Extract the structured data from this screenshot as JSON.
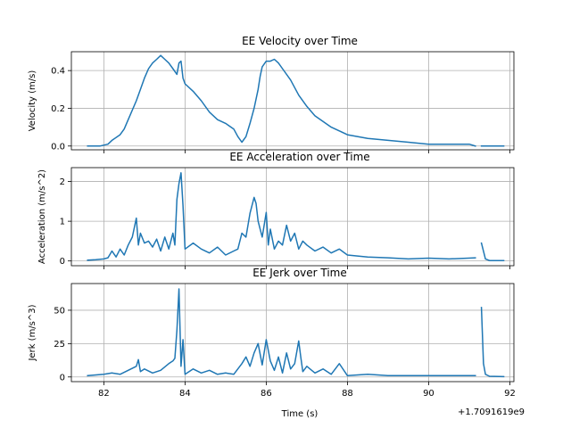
{
  "chart_data": [
    {
      "type": "line",
      "title": "EE Velocity over Time",
      "xlabel": "",
      "ylabel": "Velocity (m/s)",
      "xlim": [
        81.2,
        92.1
      ],
      "ylim": [
        -0.02,
        0.5
      ],
      "xticks": [
        82,
        84,
        86,
        88,
        90,
        92
      ],
      "yticks": [
        0.0,
        0.2,
        0.4
      ],
      "ytick_labels": [
        "0.0",
        "0.2",
        "0.4"
      ],
      "grid": true,
      "color": "#1f77b4",
      "segments": [
        {
          "x": [
            81.6,
            81.9,
            82.1,
            82.2,
            82.4,
            82.5,
            82.6,
            82.8,
            82.9,
            83.0,
            83.1,
            83.2,
            83.3,
            83.4,
            83.5,
            83.6,
            83.7,
            83.8,
            83.85,
            83.9,
            83.95,
            84.0,
            84.2,
            84.4,
            84.6,
            84.8,
            85.0,
            85.2,
            85.3,
            85.4,
            85.5,
            85.6,
            85.7,
            85.8,
            85.85,
            85.9,
            86.0,
            86.1,
            86.2,
            86.3,
            86.4,
            86.6,
            86.8,
            87.0,
            87.2,
            87.4,
            87.6,
            87.8,
            88.0,
            88.5,
            89.0,
            89.5,
            90.0,
            90.5,
            91.0,
            91.15
          ],
          "y": [
            0.0,
            0.0,
            0.01,
            0.03,
            0.06,
            0.09,
            0.14,
            0.24,
            0.3,
            0.36,
            0.41,
            0.44,
            0.46,
            0.48,
            0.46,
            0.44,
            0.41,
            0.38,
            0.44,
            0.45,
            0.36,
            0.33,
            0.29,
            0.24,
            0.18,
            0.14,
            0.12,
            0.09,
            0.05,
            0.02,
            0.05,
            0.12,
            0.2,
            0.3,
            0.37,
            0.42,
            0.45,
            0.45,
            0.46,
            0.44,
            0.41,
            0.35,
            0.27,
            0.21,
            0.16,
            0.13,
            0.1,
            0.08,
            0.06,
            0.04,
            0.03,
            0.02,
            0.01,
            0.01,
            0.01,
            0.0
          ]
        },
        {
          "x": [
            91.3,
            91.85
          ],
          "y": [
            0.0,
            0.0
          ]
        }
      ]
    },
    {
      "type": "line",
      "title": "EE Acceleration over Time",
      "xlabel": "",
      "ylabel": "Acceleration (m/s^2)",
      "xlim": [
        81.2,
        92.1
      ],
      "ylim": [
        -0.12,
        2.35
      ],
      "xticks": [
        82,
        84,
        86,
        88,
        90,
        92
      ],
      "yticks": [
        0,
        1,
        2
      ],
      "ytick_labels": [
        "0",
        "1",
        "2"
      ],
      "grid": true,
      "color": "#1f77b4",
      "segments": [
        {
          "x": [
            81.6,
            81.8,
            82.0,
            82.1,
            82.2,
            82.3,
            82.4,
            82.5,
            82.6,
            82.7,
            82.8,
            82.85,
            82.9,
            83.0,
            83.1,
            83.2,
            83.3,
            83.4,
            83.5,
            83.6,
            83.7,
            83.75,
            83.8,
            83.85,
            83.9,
            83.95,
            84.0,
            84.2,
            84.4,
            84.6,
            84.8,
            85.0,
            85.2,
            85.3,
            85.4,
            85.5,
            85.6,
            85.7,
            85.75,
            85.8,
            85.9,
            86.0,
            86.05,
            86.1,
            86.2,
            86.3,
            86.4,
            86.5,
            86.6,
            86.7,
            86.8,
            86.9,
            87.0,
            87.2,
            87.4,
            87.6,
            87.8,
            88.0,
            88.5,
            89.0,
            89.5,
            90.0,
            90.5,
            91.15
          ],
          "y": [
            0.02,
            0.03,
            0.05,
            0.08,
            0.25,
            0.1,
            0.3,
            0.15,
            0.4,
            0.6,
            1.08,
            0.4,
            0.7,
            0.45,
            0.5,
            0.35,
            0.55,
            0.25,
            0.6,
            0.3,
            0.7,
            0.4,
            1.55,
            1.95,
            2.22,
            1.4,
            0.3,
            0.45,
            0.3,
            0.2,
            0.35,
            0.15,
            0.25,
            0.3,
            0.7,
            0.6,
            1.2,
            1.6,
            1.45,
            1.0,
            0.6,
            1.22,
            0.4,
            0.8,
            0.3,
            0.5,
            0.4,
            0.9,
            0.5,
            0.7,
            0.3,
            0.5,
            0.4,
            0.25,
            0.35,
            0.2,
            0.3,
            0.15,
            0.1,
            0.08,
            0.05,
            0.07,
            0.05,
            0.08
          ]
        },
        {
          "x": [
            91.3,
            91.4,
            91.5,
            91.85
          ],
          "y": [
            0.45,
            0.05,
            0.01,
            0.01
          ]
        }
      ]
    },
    {
      "type": "line",
      "title": "EE Jerk over Time",
      "xlabel": "Time (s)",
      "ylabel": "Jerk (m/s^3)",
      "xlim": [
        81.2,
        92.1
      ],
      "ylim": [
        -3.5,
        70
      ],
      "xticks": [
        82,
        84,
        86,
        88,
        90,
        92
      ],
      "xtick_labels": [
        "82",
        "84",
        "86",
        "88",
        "90",
        "92"
      ],
      "yticks": [
        0,
        25,
        50
      ],
      "ytick_labels": [
        "0",
        "25",
        "50"
      ],
      "offset_label": "+1.7091619e9",
      "grid": true,
      "color": "#1f77b4",
      "segments": [
        {
          "x": [
            81.6,
            82.0,
            82.2,
            82.4,
            82.6,
            82.8,
            82.85,
            82.9,
            83.0,
            83.2,
            83.4,
            83.6,
            83.7,
            83.75,
            83.8,
            83.85,
            83.9,
            83.95,
            84.0,
            84.2,
            84.4,
            84.6,
            84.8,
            85.0,
            85.2,
            85.4,
            85.5,
            85.6,
            85.7,
            85.8,
            85.9,
            86.0,
            86.1,
            86.2,
            86.3,
            86.4,
            86.5,
            86.6,
            86.7,
            86.8,
            86.85,
            86.9,
            87.0,
            87.2,
            87.4,
            87.6,
            87.8,
            88.0,
            88.5,
            89.0,
            89.5,
            90.0,
            90.5,
            91.15
          ],
          "y": [
            1,
            2,
            3,
            2,
            5,
            8,
            13,
            4,
            6,
            3,
            5,
            10,
            12,
            14,
            35,
            66,
            8,
            28,
            2,
            6,
            3,
            5,
            2,
            3,
            2,
            10,
            15,
            8,
            18,
            25,
            9,
            28,
            12,
            5,
            15,
            3,
            18,
            6,
            10,
            27,
            15,
            4,
            8,
            3,
            6,
            2,
            10,
            1,
            2,
            1,
            1,
            1,
            1,
            1
          ]
        },
        {
          "x": [
            91.3,
            91.35,
            91.4,
            91.5,
            91.85
          ],
          "y": [
            52,
            10,
            2,
            0.5,
            0.3
          ]
        }
      ]
    }
  ]
}
